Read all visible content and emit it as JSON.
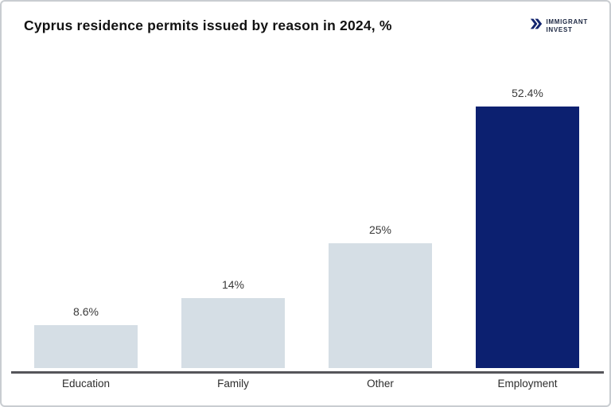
{
  "header": {
    "title": "Cyprus residence permits issued by reason in 2024, %",
    "logo": {
      "line1": "IMMIGRANT",
      "line2": "INVEST",
      "icon": "double-chevron-right-icon",
      "icon_color": "#13256f",
      "text_color": "#1c2742"
    }
  },
  "colors": {
    "bar_default": "#d5dee5",
    "bar_highlight": "#0c2070",
    "axis": "#55555a",
    "value_label": "#3a3a3a",
    "category_label": "#2d2d2d",
    "title": "#121212",
    "frame_border": "#c9cdd1",
    "background": "#ffffff"
  },
  "chart_data": {
    "type": "bar",
    "title": "Cyprus residence permits issued by reason in 2024, %",
    "categories": [
      "Education",
      "Family",
      "Other",
      "Employment"
    ],
    "values": [
      8.6,
      14,
      25,
      52.4
    ],
    "value_labels": [
      "8.6%",
      "14%",
      "25%",
      "52.4%"
    ],
    "unit": "%",
    "xlabel": "",
    "ylabel": "",
    "ylim": [
      0,
      57
    ],
    "grid": false,
    "legend": "none",
    "y_axis_shown": false,
    "baseline_shown": true,
    "highlight_category": "Employment",
    "bar_colors": [
      "#d5dee5",
      "#d5dee5",
      "#d5dee5",
      "#0c2070"
    ]
  }
}
